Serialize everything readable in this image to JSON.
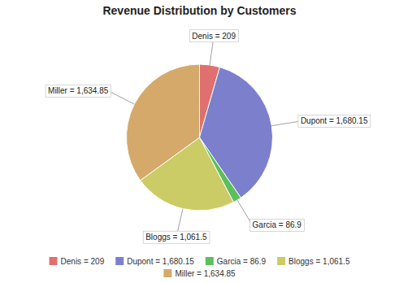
{
  "chart_data": {
    "type": "pie",
    "title": "Revenue Distribution by Customers",
    "categories": [
      "Denis = 209",
      "Dupont = 1,680.15",
      "Garcia = 86.9",
      "Bloggs = 1,061.5",
      "Miller = 1,634.85"
    ],
    "values": [
      209,
      1680.15,
      86.9,
      1061.5,
      1634.85
    ],
    "value_labels": [
      "Denis = 209",
      "Dupont = 1,680.15",
      "Garcia = 86.9",
      "Bloggs = 1,061.5",
      "Miller = 1,634.85"
    ],
    "colors": [
      "#E07070",
      "#7B7FCC",
      "#5BBF5B",
      "#CCCC66",
      "#D4A96A"
    ],
    "data_labels": true,
    "legend": "bottom"
  }
}
